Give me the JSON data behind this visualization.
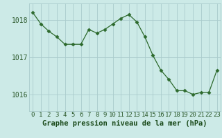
{
  "x": [
    0,
    1,
    2,
    3,
    4,
    5,
    6,
    7,
    8,
    9,
    10,
    11,
    12,
    13,
    14,
    15,
    16,
    17,
    18,
    19,
    20,
    21,
    22,
    23
  ],
  "y": [
    1018.2,
    1017.9,
    1017.7,
    1017.55,
    1017.35,
    1017.35,
    1017.35,
    1017.75,
    1017.65,
    1017.75,
    1017.9,
    1018.05,
    1018.15,
    1017.95,
    1017.55,
    1017.05,
    1016.65,
    1016.4,
    1016.1,
    1016.1,
    1016.0,
    1016.05,
    1016.05,
    1016.65
  ],
  "line_color": "#2d6a2d",
  "marker": "D",
  "marker_size": 2.5,
  "bg_color": "#cceae7",
  "grid_color": "#aacccc",
  "xlabel": "Graphe pression niveau de la mer (hPa)",
  "xlabel_color": "#1a4a1a",
  "xlabel_fontsize": 7.5,
  "tick_color": "#2d5a2d",
  "tick_fontsize": 6.5,
  "ytick_fontsize": 7,
  "ylim": [
    1015.55,
    1018.45
  ],
  "yticks": [
    1016,
    1017,
    1018
  ],
  "xlim": [
    -0.5,
    23.5
  ],
  "xticks": [
    0,
    1,
    2,
    3,
    4,
    5,
    6,
    7,
    8,
    9,
    10,
    11,
    12,
    13,
    14,
    15,
    16,
    17,
    18,
    19,
    20,
    21,
    22,
    23
  ]
}
